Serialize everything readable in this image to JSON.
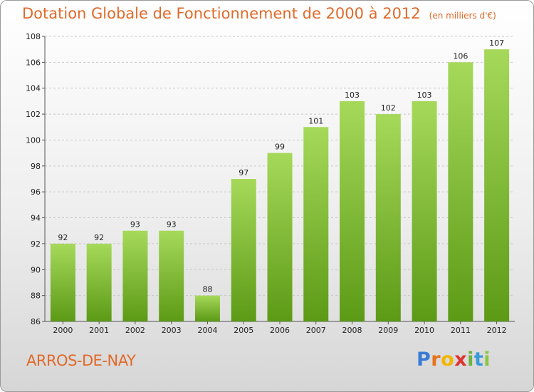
{
  "title": "Dotation Globale de Fonctionnement de 2000 à 2012",
  "subtitle": "(en milliers d'€)",
  "commune": "ARROS-DE-NAY",
  "logo": {
    "text": "Proxiti",
    "letters": [
      {
        "ch": "P",
        "color": "#3a7bd5"
      },
      {
        "ch": "r",
        "color": "#e8731c"
      },
      {
        "ch": "o",
        "color": "#f2b500"
      },
      {
        "ch": "x",
        "color": "#e0322f"
      },
      {
        "ch": "i",
        "color": "#6cb33f"
      },
      {
        "ch": "t",
        "color": "#3a9ad9"
      },
      {
        "ch": "i",
        "color": "#8cc63f"
      }
    ]
  },
  "colors": {
    "title": "#e06a2a",
    "bar_top": "#a6d95a",
    "bar_bottom": "#5c9a16",
    "grid": "#c8c8c8",
    "axis": "#555555"
  },
  "chart_data": {
    "type": "bar",
    "title": "Dotation Globale de Fonctionnement de 2000 à 2012",
    "subtitle": "(en milliers d'€)",
    "xlabel": "",
    "ylabel": "",
    "categories": [
      "2000",
      "2001",
      "2002",
      "2003",
      "2004",
      "2005",
      "2006",
      "2007",
      "2008",
      "2009",
      "2010",
      "2011",
      "2012"
    ],
    "values": [
      92,
      92,
      93,
      93,
      88,
      97,
      99,
      101,
      103,
      102,
      103,
      106,
      107
    ],
    "ylim": [
      86,
      108
    ],
    "yticks": [
      86,
      88,
      90,
      92,
      94,
      96,
      98,
      100,
      102,
      104,
      106,
      108
    ],
    "grid": "horizontal dashed",
    "legend": "none"
  }
}
